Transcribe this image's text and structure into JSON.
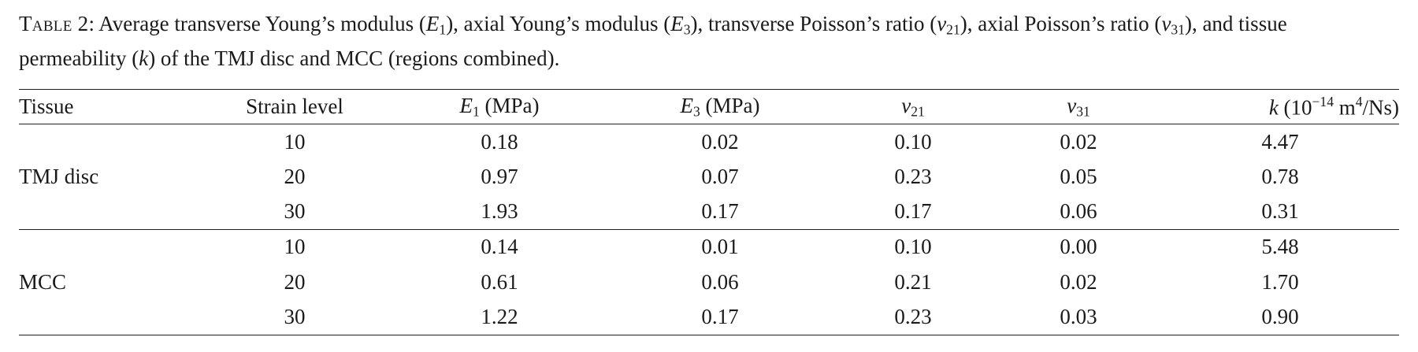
{
  "caption": {
    "label": "Table 2",
    "sep": ": ",
    "p1": "Average transverse Young’s modulus (",
    "e": "E",
    "sub1": "1",
    "p2": "), axial Young’s modulus (",
    "sub3": "3",
    "p3": "), transverse Poisson’s ratio (",
    "nu": "ν",
    "sub21": "21",
    "p4": "), axial Poisson’s ratio (",
    "sub31": "31",
    "p5": "), and tissue permeability (",
    "k": "k",
    "p6": ") of the TMJ disc and MCC (regions combined)."
  },
  "table": {
    "headers": {
      "tissue": "Tissue",
      "strain": "Strain level",
      "e1_sym": "E",
      "e1_sub": "1",
      "e1_unit": " (MPa)",
      "e3_sym": "E",
      "e3_sub": "3",
      "e3_unit": " (MPa)",
      "nu21_sym": "ν",
      "nu21_sub": "21",
      "nu31_sym": "ν",
      "nu31_sub": "31",
      "k_sym": "k",
      "k_pre": " (10",
      "k_exp": "−14",
      "k_m": " m",
      "k_mexp": "4",
      "k_post": "/Ns)"
    },
    "groups": [
      {
        "tissue": "TMJ disc",
        "rows": [
          {
            "strain": "10",
            "e1": "0.18",
            "e3": "0.02",
            "nu21": "0.10",
            "nu31": "0.02",
            "k": "4.47"
          },
          {
            "strain": "20",
            "e1": "0.97",
            "e3": "0.07",
            "nu21": "0.23",
            "nu31": "0.05",
            "k": "0.78"
          },
          {
            "strain": "30",
            "e1": "1.93",
            "e3": "0.17",
            "nu21": "0.17",
            "nu31": "0.06",
            "k": "0.31"
          }
        ]
      },
      {
        "tissue": "MCC",
        "rows": [
          {
            "strain": "10",
            "e1": "0.14",
            "e3": "0.01",
            "nu21": "0.10",
            "nu31": "0.00",
            "k": "5.48"
          },
          {
            "strain": "20",
            "e1": "0.61",
            "e3": "0.06",
            "nu21": "0.21",
            "nu31": "0.02",
            "k": "1.70"
          },
          {
            "strain": "30",
            "e1": "1.22",
            "e3": "0.17",
            "nu21": "0.23",
            "nu31": "0.03",
            "k": "0.90"
          }
        ]
      }
    ]
  }
}
